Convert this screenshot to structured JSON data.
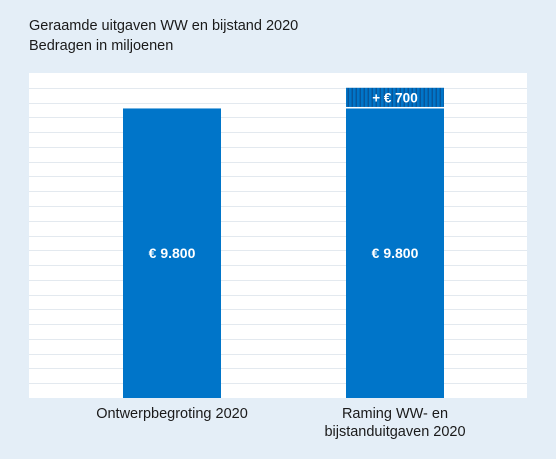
{
  "chart_data": {
    "type": "bar",
    "title": "Geraamde uitgaven WW en bijstand 2020",
    "subtitle": "Bedragen in miljoenen",
    "xlabel": "",
    "ylabel": "",
    "ylim": [
      0,
      11000
    ],
    "grid": true,
    "legend": "none",
    "categories": [
      "Ontwerpbegroting 2020",
      "Raming WW- en bijstanduitgaven 2020"
    ],
    "category_lines": [
      [
        "Ontwerpbegroting 2020"
      ],
      [
        "Raming WW- en",
        "bijstanduitgaven 2020"
      ]
    ],
    "series": [
      {
        "values": [
          9800,
          9800
        ],
        "labels": [
          "€ 9.800",
          "€ 9.800"
        ],
        "color": "#0075c9"
      },
      {
        "values": [
          0,
          700
        ],
        "labels": [
          "",
          "+ € 700"
        ],
        "color": "#0075c9",
        "pattern": "vertical-stripes"
      }
    ]
  }
}
